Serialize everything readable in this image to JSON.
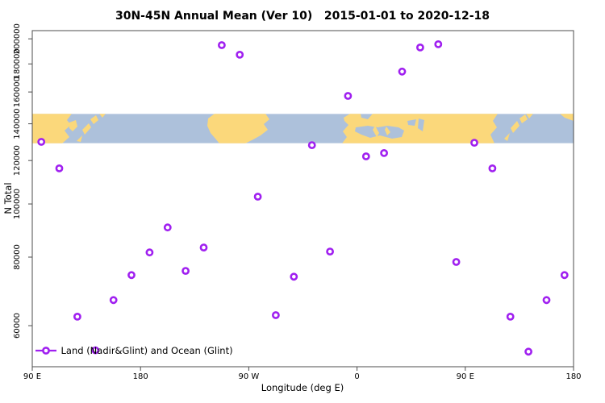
{
  "title": "30N-45N Annual Mean (Ver 10)   2015-01-01 to 2020-12-18",
  "chart_data": {
    "type": "scatter",
    "title": "30N-45N Annual Mean (Ver 10)   2015-01-01 to 2020-12-18",
    "xlabel": "Longitude (deg E)",
    "ylabel": "N Total",
    "x_axis": {
      "range_deg": [
        90,
        540
      ],
      "tick_values": [
        90,
        180,
        270,
        360,
        450,
        540
      ],
      "tick_labels": [
        "90 E",
        "180",
        "90 W",
        "0",
        "90 E",
        "180"
      ]
    },
    "y_axis": {
      "scale": "log10",
      "range": [
        50500,
        207000
      ],
      "tick_values": [
        60000,
        80000,
        100000,
        120000,
        140000,
        160000,
        180000,
        200000
      ],
      "tick_labels": [
        "60000",
        "80000",
        "100000",
        "120000",
        "140000",
        "160000",
        "180000",
        "200000"
      ]
    },
    "legend": {
      "label": "Land (Nadir&Glint) and Ocean (Glint)",
      "marker": "open-circle-on-line",
      "position": "bottom-left"
    },
    "map_band": {
      "n_top": 146000,
      "n_bottom": 129000,
      "description": "30N-45N latitude strip of world map"
    },
    "series": [
      {
        "name": "Land (Nadir&Glint) and Ocean (Glint)",
        "marker": "open-circle",
        "color": "#A020F0",
        "points": [
          [
            97.5,
            129800
          ],
          [
            112.5,
            116100
          ],
          [
            127.5,
            62300
          ],
          [
            142.5,
            54100
          ],
          [
            157.5,
            66800
          ],
          [
            172.5,
            74200
          ],
          [
            187.5,
            81600
          ],
          [
            202.5,
            90600
          ],
          [
            217.5,
            75500
          ],
          [
            232.5,
            83300
          ],
          [
            247.5,
            194800
          ],
          [
            262.5,
            187100
          ],
          [
            277.5,
            103100
          ],
          [
            292.5,
            62700
          ],
          [
            307.5,
            73700
          ],
          [
            322.5,
            128000
          ],
          [
            337.5,
            81900
          ],
          [
            352.5,
            157400
          ],
          [
            367.5,
            122100
          ],
          [
            382.5,
            123800
          ],
          [
            397.5,
            174300
          ],
          [
            412.5,
            192900
          ],
          [
            427.5,
            195500
          ],
          [
            442.5,
            78400
          ],
          [
            457.5,
            129300
          ],
          [
            472.5,
            116100
          ],
          [
            487.5,
            62300
          ],
          [
            502.5,
            53800
          ],
          [
            517.5,
            66800
          ],
          [
            532.5,
            74200
          ]
        ]
      }
    ],
    "grid": "off"
  },
  "colors": {
    "marker": "#A020F0",
    "land": "#FBD87B",
    "ocean": "#ADC1DB",
    "axis": "#4d4d4d",
    "text": "#000000",
    "background": "#FFFFFF"
  }
}
